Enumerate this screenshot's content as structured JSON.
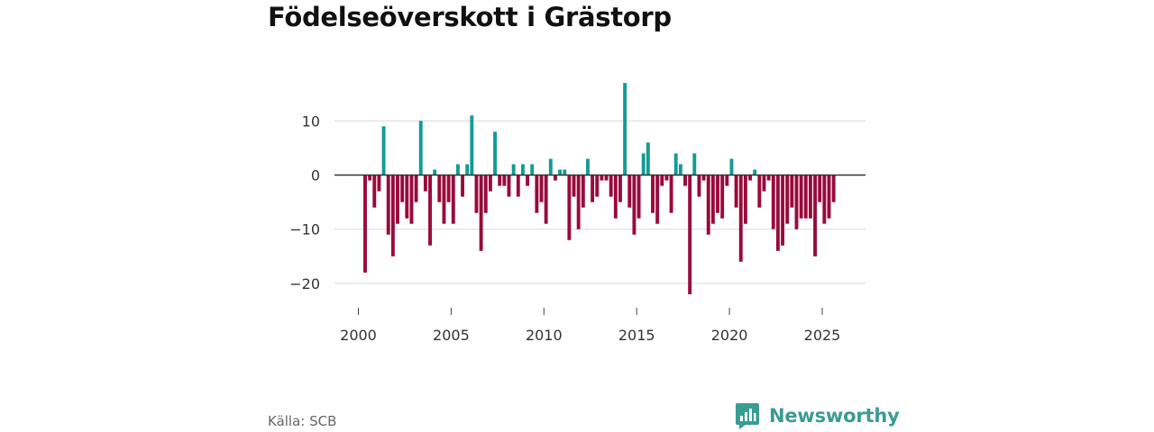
{
  "title": "Födelseöverskott i Grästorp",
  "source": "Källa: SCB",
  "brand": {
    "name": "Newsworthy",
    "color": "#3a9c92"
  },
  "colors": {
    "positive": "#119c94",
    "negative": "#990a3c",
    "grid": "#d9d9d9",
    "zero": "#333333"
  },
  "chart_data": {
    "type": "bar",
    "title": "Födelseöverskott i Grästorp",
    "xlabel": "",
    "ylabel": "",
    "x_ticks": [
      2000,
      2005,
      2010,
      2015,
      2020,
      2025
    ],
    "y_ticks": [
      10,
      0,
      -10,
      -20
    ],
    "y_tick_labels": [
      "10",
      "0",
      "−10",
      "−20"
    ],
    "xlim": [
      1999,
      2027.5
    ],
    "ylim": [
      -23,
      18
    ],
    "grid": true,
    "legend": "none",
    "bar_interval": "quarter",
    "start_period": "2000 Q2",
    "values": [
      -18,
      -1,
      -6,
      -3,
      9,
      -11,
      -15,
      -9,
      -5,
      -8,
      -9,
      -5,
      10,
      -3,
      -13,
      1,
      -5,
      -9,
      -5,
      -9,
      2,
      -4,
      2,
      11,
      -7,
      -14,
      -7,
      -3,
      8,
      -2,
      -2,
      -4,
      2,
      -4,
      2,
      -2,
      2,
      -7,
      -5,
      -9,
      3,
      -1,
      1,
      1,
      -12,
      -4,
      -10,
      -6,
      3,
      -5,
      -4,
      -1,
      -1,
      -4,
      -8,
      -5,
      17,
      -6,
      -11,
      -8,
      4,
      6,
      -7,
      -9,
      -2,
      -1,
      -7,
      4,
      2,
      -2,
      -22,
      4,
      -4,
      -1,
      -11,
      -9,
      -7,
      -8,
      -2,
      3,
      -6,
      -16,
      -9,
      -1,
      1,
      -6,
      -3,
      -1,
      -10,
      -14,
      -13,
      -9,
      -6,
      -10,
      -8,
      -8,
      -8,
      -15,
      -5,
      -9,
      -8,
      -5
    ]
  }
}
